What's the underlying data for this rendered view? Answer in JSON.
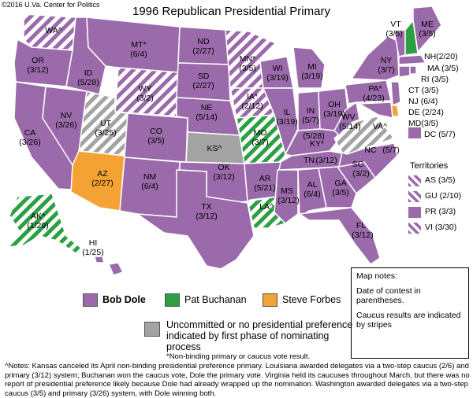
{
  "title": "1996 Republican Presidential Primary",
  "copyright": "©2016 U.Va. Center for Politics",
  "colors": {
    "dole": "#9b6aab",
    "buchanan": "#2e9e43",
    "forbes": "#f5a234",
    "uncommitted": "#a3a3a3",
    "stripe_light": "#ffffff",
    "border": "#ffffff"
  },
  "states": {
    "WA": "WA^",
    "OR": "OR",
    "OR_d": "(3/12)",
    "CA": "CA",
    "CA_d": "(3/26)",
    "NV": "NV",
    "NV_d": "(3/26)",
    "ID": "ID",
    "ID_d": "(5/28)",
    "MT": "MT*",
    "MT_d": "(6/4)",
    "WY": "WY",
    "WY_d": "(3/2)",
    "UT": "UT",
    "UT_d": "(3/25)",
    "AZ": "AZ",
    "AZ_d": "(2/27)",
    "CO": "CO",
    "CO_d": "(3/5)",
    "NM": "NM",
    "NM_d": "(6/4)",
    "ND": "ND",
    "ND_d": "(2/27)",
    "SD": "SD",
    "SD_d": "(2/27)",
    "NE": "NE",
    "NE_d": "(5/14)",
    "KS": "KS^",
    "OK": "OK",
    "OK_d": "(3/12)",
    "TX": "TX",
    "TX_d": "(3/12)",
    "MN": "MN*",
    "MN_d": "(3/5)",
    "IA": "IA*",
    "IA_d": "(2/12)",
    "MO": "MO",
    "MO_d": "(3/7)",
    "AR": "AR",
    "AR_d": "(5/21)",
    "LA": "LA^",
    "WI": "WI",
    "WI_d": "(3/19)",
    "IL": "IL",
    "IL_d": "(3/19)",
    "MI": "MI",
    "MI_d": "(3/19)",
    "IN": "IN",
    "IN_d": "(5/7)",
    "OH": "OH",
    "OH_d": "(3/19)",
    "KY": "KY*",
    "KY_d": "(5/28)",
    "TN": "TN",
    "TN_d": "(3/12)",
    "MS": "MS",
    "MS_d": "(3/12)",
    "AL": "AL",
    "AL_d": "(6/4)",
    "GA": "GA",
    "GA_d": "(3/5)",
    "FL": "FL",
    "FL_d": "(3/12)",
    "SC": "SC",
    "SC_d": "(3/2)",
    "NC": "NC",
    "NC_d": "(5/7)",
    "VA": "VA^",
    "WV": "WV",
    "WV_d": "(5/14)",
    "PA": "PA*",
    "PA_d": "(4/23)",
    "NY": "NY",
    "NY_d": "(3/7)",
    "VT": "VT",
    "VT_d": "(3/5)",
    "ME": "ME",
    "ME_d": "(3/5)",
    "AK": "AK*",
    "AK_d": "(1/29)",
    "HI": "HI",
    "HI_d": "(1/25)"
  },
  "east_labels": {
    "NH": "NH(2/20)",
    "MA": "MA (3/5)",
    "RI": "RI (3/5)",
    "CT": "CT (3/5)",
    "NJ": "NJ (6/4)",
    "DE": "DE (2/24)",
    "MD": "MD(3/5)",
    "DC": "DC (5/7)"
  },
  "territories": {
    "title": "Territories",
    "items": [
      {
        "label": "AS (3/5)",
        "style": "striped"
      },
      {
        "label": "GU (2/10)",
        "style": "striped"
      },
      {
        "label": "PR (3/3)",
        "style": "solid"
      },
      {
        "label": "VI  (3/30)",
        "style": "striped"
      }
    ]
  },
  "map_notes": {
    "heading": "Map notes:",
    "line1": "Date of contest in parentheses.",
    "line2": "Caucus results are indicated by stripes"
  },
  "legend": {
    "dole": "Bob Dole",
    "buchanan": "Pat Buchanan",
    "forbes": "Steve Forbes",
    "uncommitted": "Uncommitted or no presidential preference indicated by first phase of nominating process"
  },
  "footnotes": {
    "star": "*Non-binding primary or caucus vote result.",
    "notes": "^Notes: Kansas canceled its April non-binding presidential preference primary. Louisiana awarded delegates via a two-step caucus (2/6) and primary (3/12) system; Buchanan won the caucus vote, Dole the primary vote. Virginia held its caucuses throughout March, but there was no report of presidential preference likely because Dole had already wrapped up the nomination. Washington awarded delegates via a two-step caucus (3/5) and primary (3/26) system, with Dole winning both."
  }
}
